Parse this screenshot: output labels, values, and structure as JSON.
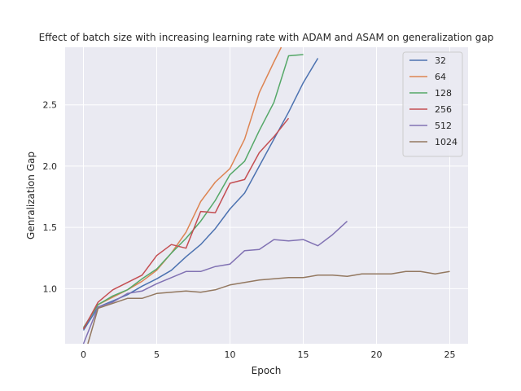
{
  "chart_data": {
    "type": "line",
    "title": "Effect of batch size with increasing learning rate with ADAM and ASAM on generalization gap",
    "xlabel": "Epoch",
    "ylabel": "Genralization Gap",
    "xlim": [
      -1.25,
      26.25
    ],
    "ylim": [
      0.55,
      2.97
    ],
    "xticks": [
      0,
      5,
      10,
      15,
      20,
      25
    ],
    "yticks": [
      1.0,
      1.5,
      2.0,
      2.5
    ],
    "ytick_labels": [
      "1.0",
      "1.5",
      "2.0",
      "2.5"
    ],
    "grid": true,
    "legend_position": "top-right",
    "series": [
      {
        "name": "32",
        "color": "#4c72b0",
        "x": [
          0,
          1,
          2,
          3,
          4,
          5,
          6,
          7,
          8,
          9,
          10,
          11,
          12,
          13,
          14,
          15,
          16
        ],
        "y": [
          0.66,
          0.85,
          0.9,
          0.95,
          1.02,
          1.08,
          1.15,
          1.26,
          1.36,
          1.49,
          1.65,
          1.78,
          2.0,
          2.22,
          2.44,
          2.68,
          2.88
        ]
      },
      {
        "name": "64",
        "color": "#dd8452",
        "x": [
          0,
          1,
          2,
          3,
          4,
          5,
          6,
          7,
          8,
          9,
          10,
          11,
          12,
          13,
          13.5
        ],
        "y": [
          0.68,
          0.87,
          0.93,
          0.99,
          1.06,
          1.15,
          1.29,
          1.46,
          1.71,
          1.87,
          1.98,
          2.22,
          2.6,
          2.85,
          2.97
        ]
      },
      {
        "name": "128",
        "color": "#55a868",
        "x": [
          0,
          1,
          2,
          3,
          4,
          5,
          6,
          7,
          8,
          9,
          10,
          11,
          12,
          13,
          14,
          15
        ],
        "y": [
          0.68,
          0.87,
          0.94,
          0.99,
          1.08,
          1.16,
          1.29,
          1.41,
          1.55,
          1.72,
          1.93,
          2.04,
          2.29,
          2.52,
          2.9,
          2.91
        ]
      },
      {
        "name": "256",
        "color": "#c44e52",
        "x": [
          0,
          1,
          2,
          3,
          4,
          5,
          6,
          7,
          8,
          9,
          10,
          11,
          12,
          13,
          14
        ],
        "y": [
          0.67,
          0.89,
          0.99,
          1.05,
          1.11,
          1.27,
          1.36,
          1.33,
          1.63,
          1.62,
          1.86,
          1.89,
          2.11,
          2.24,
          2.39
        ]
      },
      {
        "name": "512",
        "color": "#8172b3",
        "x": [
          0,
          1,
          2,
          3,
          4,
          5,
          6,
          7,
          8,
          9,
          10,
          11,
          12,
          13,
          14,
          15,
          16,
          17,
          18
        ],
        "y": [
          0.55,
          0.85,
          0.89,
          0.96,
          0.98,
          1.04,
          1.09,
          1.14,
          1.14,
          1.18,
          1.2,
          1.31,
          1.32,
          1.4,
          1.39,
          1.4,
          1.35,
          1.44,
          1.55
        ]
      },
      {
        "name": "1024",
        "color": "#937860",
        "x": [
          0.3,
          1,
          2,
          3,
          4,
          5,
          6,
          7,
          8,
          9,
          10,
          11,
          12,
          13,
          14,
          15,
          16,
          17,
          18,
          19,
          20,
          21,
          22,
          23,
          24,
          25
        ],
        "y": [
          0.55,
          0.84,
          0.88,
          0.92,
          0.92,
          0.96,
          0.97,
          0.98,
          0.97,
          0.99,
          1.03,
          1.05,
          1.07,
          1.08,
          1.09,
          1.09,
          1.11,
          1.11,
          1.1,
          1.12,
          1.12,
          1.12,
          1.14,
          1.14,
          1.12,
          1.14
        ]
      }
    ]
  }
}
